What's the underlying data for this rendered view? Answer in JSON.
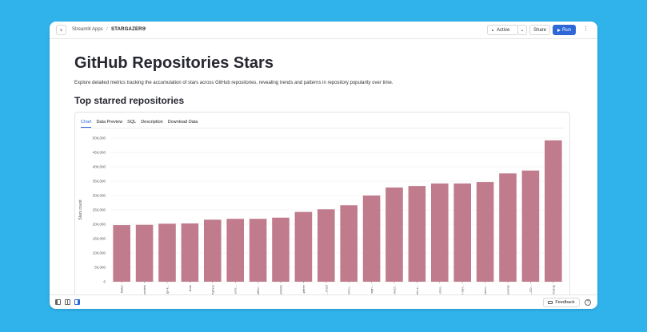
{
  "topbar": {
    "breadcrumb_apps": "Streamlit Apps",
    "breadcrumb_separator": "/",
    "app_name": "STARGAZERS",
    "status_label": "Active",
    "share_label": "Share",
    "run_label": "Run"
  },
  "page": {
    "title": "GitHub Repositories Stars",
    "description": "Explore detailed metrics tracking the accumulation of stars across GitHub repositories, revealing trends and patterns in repository popularity over time.",
    "section_title": "Top starred repositories",
    "tabs": [
      "Chart",
      "Data Preview",
      "SQL",
      "Description",
      "Download Data"
    ],
    "active_tab": "Chart"
  },
  "footer": {
    "feedback_label": "Feedback",
    "help_glyph": "?"
  },
  "colors": {
    "accent": "#2e68d6",
    "bar": "#c07b8c",
    "background": "#2fb3ea"
  },
  "chart_data": {
    "type": "bar",
    "ylabel": "Stars count",
    "xlabel": "",
    "ylim": [
      0,
      500000
    ],
    "yticks": [
      0,
      50000,
      100000,
      150000,
      200000,
      250000,
      300000,
      350000,
      400000,
      450000,
      500000
    ],
    "ytick_labels": [
      "0",
      "50,000",
      "100,000",
      "150,000",
      "200,000",
      "250,000",
      "300,000",
      "350,000",
      "400,000",
      "450,000",
      "500,000"
    ],
    "grid": true,
    "categories": [
      "flutter",
      "...models",
      "...tpl-lt...",
      "linux",
      "...Python",
      "...ecre...",
      "...witho...",
      "...portfolio",
      "...ptfree",
      "...react",
      "...reeCo...",
      "...sign...",
      "...read...",
      "...vuex-x...",
      "...ebsi...",
      "...lb-styl...",
      "...prom...",
      "...resume",
      "...ML-CO...",
      "...oCamp"
    ],
    "values": [
      197000,
      198000,
      202000,
      203000,
      216000,
      219000,
      219000,
      223000,
      243000,
      252000,
      266000,
      300000,
      328000,
      333000,
      342000,
      342000,
      347000,
      377000,
      387000,
      492000
    ]
  }
}
